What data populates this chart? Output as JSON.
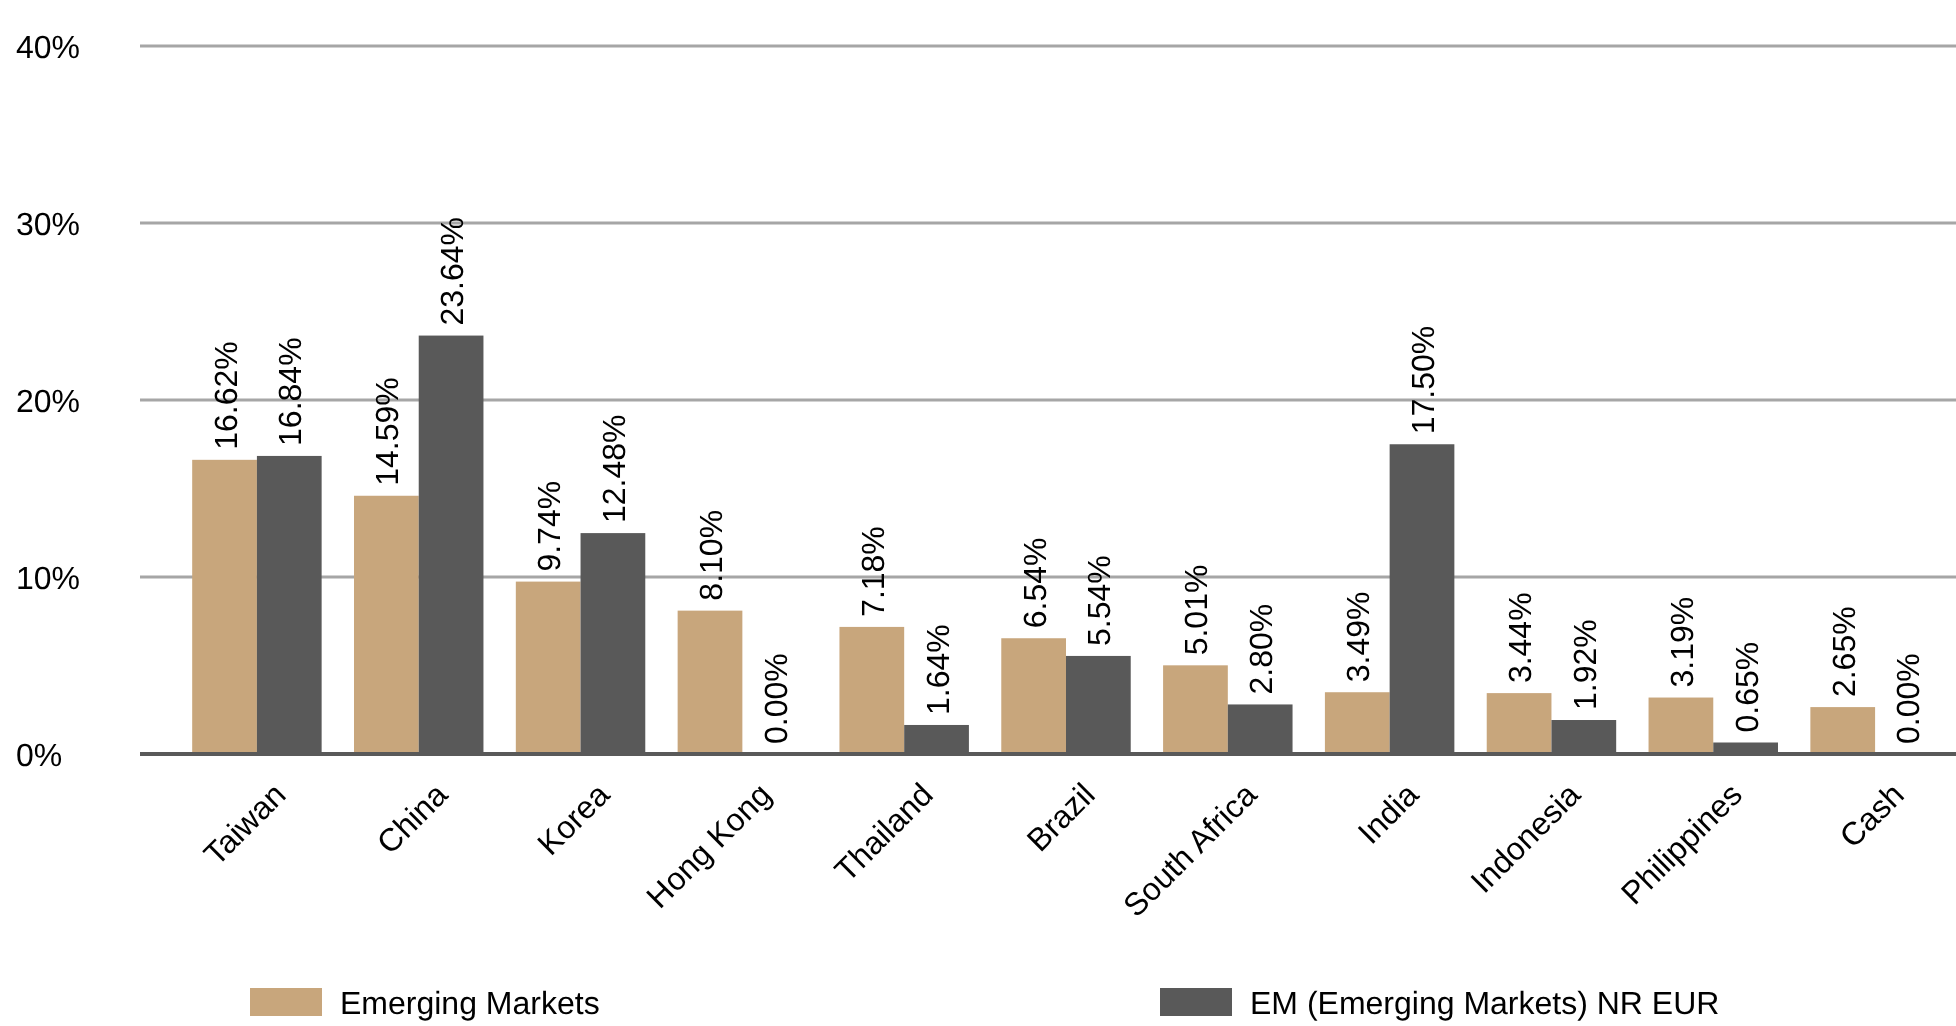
{
  "chart_data": {
    "type": "bar",
    "categories": [
      "Taiwan",
      "China",
      "Korea",
      "Hong Kong",
      "Thailand",
      "Brazil",
      "South Africa",
      "India",
      "Indonesia",
      "Philippines",
      "Cash"
    ],
    "series": [
      {
        "name": "Emerging Markets",
        "color": "#c8a67c",
        "values": [
          16.62,
          14.59,
          9.74,
          8.1,
          7.18,
          6.54,
          5.01,
          3.49,
          3.44,
          3.19,
          2.65
        ],
        "value_labels": [
          "16.62%",
          "14.59%",
          "9.74%",
          "8.10%",
          "7.18%",
          "6.54%",
          "5.01%",
          "3.49%",
          "3.44%",
          "3.19%",
          "2.65%"
        ]
      },
      {
        "name": "EM (Emerging Markets) NR EUR",
        "color": "#595959",
        "values": [
          16.84,
          23.64,
          12.48,
          0,
          1.64,
          5.54,
          2.8,
          17.5,
          1.92,
          0.65,
          0
        ],
        "value_labels": [
          "16.84%",
          "23.64%",
          "12.48%",
          "0.00%",
          "1.64%",
          "5.54%",
          "2.80%",
          "17.50%",
          "1.92%",
          "0.65%",
          "0.00%"
        ]
      }
    ],
    "ylim": [
      0,
      40
    ],
    "yticks": [
      {
        "value": 0,
        "label": "0%"
      },
      {
        "value": 10,
        "label": "10%"
      },
      {
        "value": 20,
        "label": "20%"
      },
      {
        "value": 30,
        "label": "30%"
      },
      {
        "value": 40,
        "label": "40%"
      }
    ],
    "grid": "y",
    "legend": "bottom"
  }
}
